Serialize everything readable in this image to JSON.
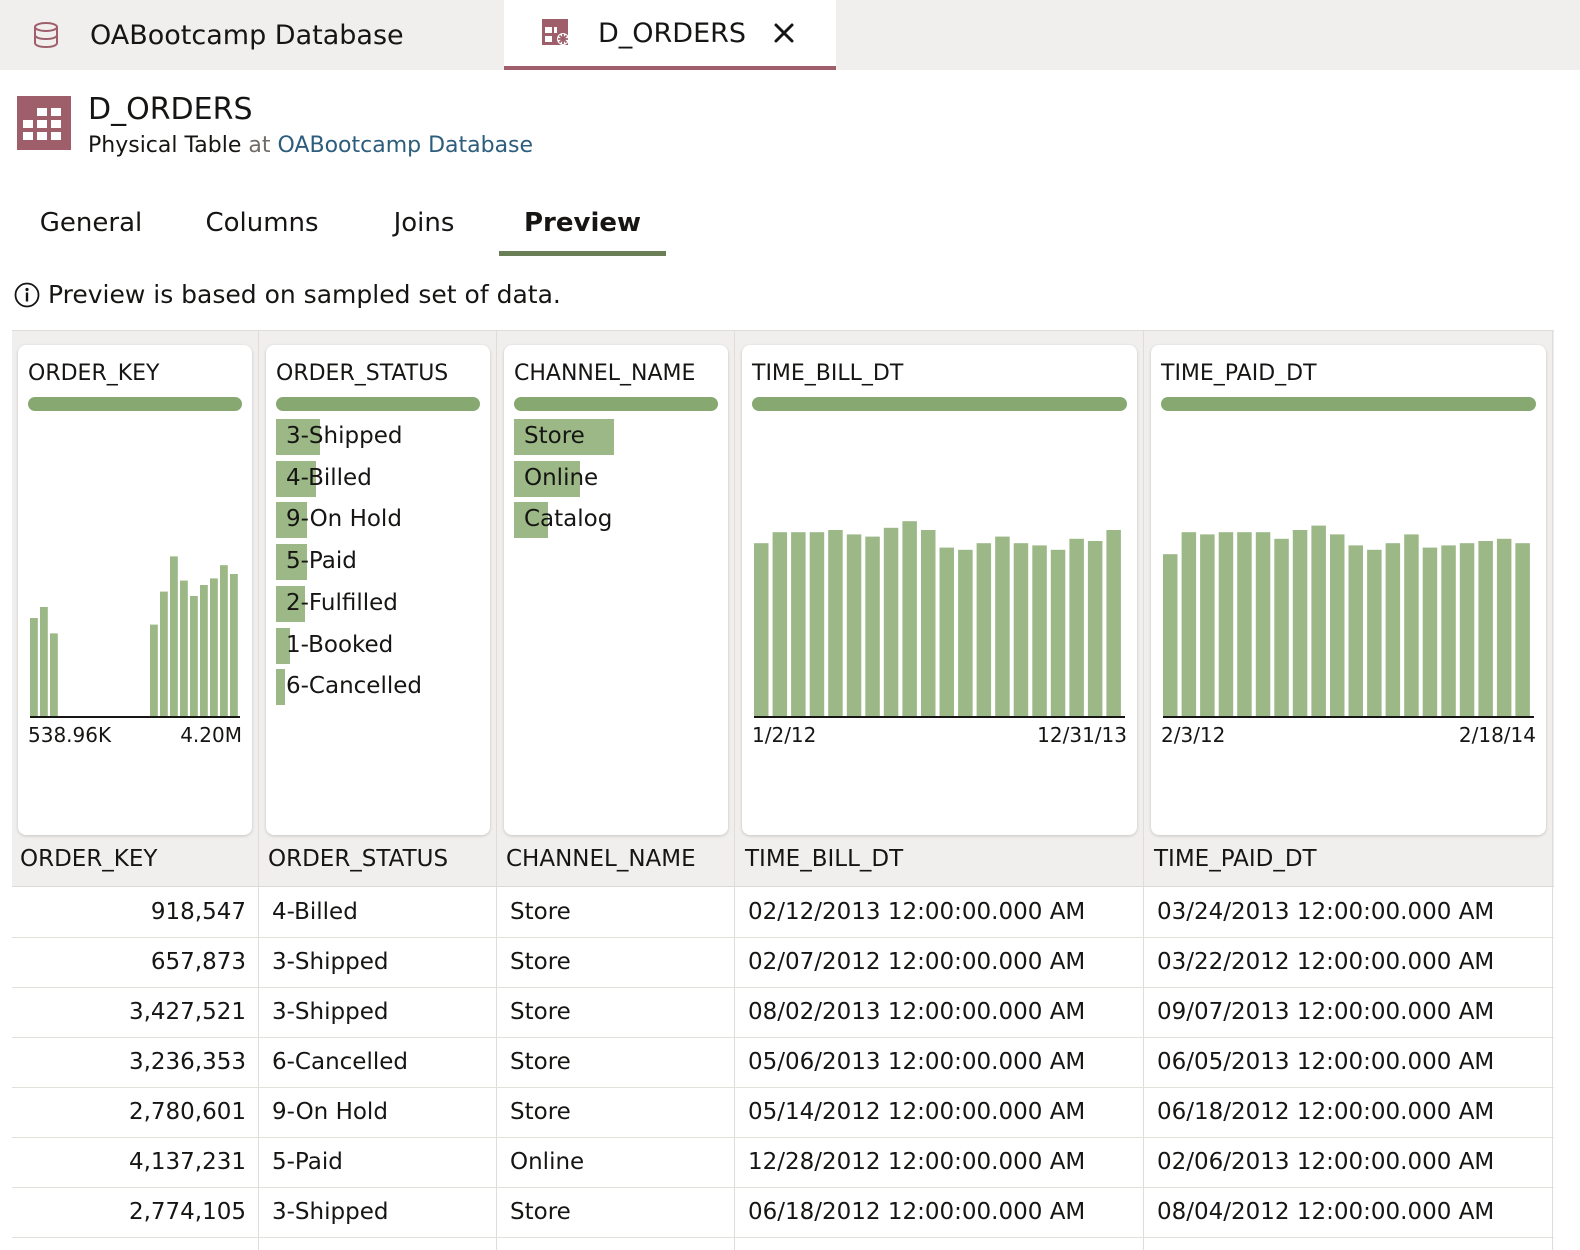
{
  "tabs": [
    {
      "label": "OABootcamp Database",
      "icon": "database-icon"
    },
    {
      "label": "D_ORDERS",
      "icon": "table-icon",
      "active": true
    }
  ],
  "header": {
    "title": "D_ORDERS",
    "type": "Physical Table",
    "at": "at",
    "parent": "OABootcamp Database"
  },
  "subtabs": [
    {
      "label": "General"
    },
    {
      "label": "Columns"
    },
    {
      "label": "Joins"
    },
    {
      "label": "Preview",
      "active": true
    }
  ],
  "notice": "Preview is based on sampled set of data.",
  "colors": {
    "accent": "#9e5f6b",
    "bar": "#9bb886",
    "barStrong": "#88a872",
    "link": "#2c5d7d"
  },
  "chart_data": [
    {
      "type": "bar",
      "title": "ORDER_KEY",
      "values": [
        0.45,
        0.5,
        0.38,
        0,
        0,
        0,
        0,
        0,
        0,
        0,
        0,
        0,
        0.42,
        0.57,
        0.73,
        0.62,
        0.55,
        0.6,
        0.63,
        0.69,
        0.65
      ],
      "range": [
        "538.96K",
        "4.20M"
      ]
    },
    {
      "type": "bar",
      "title": "ORDER_STATUS",
      "categories": [
        "3-Shipped",
        "4-Billed",
        "9-On Hold",
        "5-Paid",
        "2-Fulfilled",
        "1-Booked",
        "6-Cancelled"
      ],
      "values": [
        0.22,
        0.2,
        0.155,
        0.155,
        0.145,
        0.07,
        0.045
      ]
    },
    {
      "type": "bar",
      "title": "CHANNEL_NAME",
      "categories": [
        "Store",
        "Online",
        "Catalog"
      ],
      "values": [
        0.5,
        0.33,
        0.17
      ]
    },
    {
      "type": "bar",
      "title": "TIME_BILL_DT",
      "values": [
        0.79,
        0.84,
        0.84,
        0.84,
        0.85,
        0.83,
        0.82,
        0.86,
        0.89,
        0.85,
        0.77,
        0.76,
        0.79,
        0.82,
        0.79,
        0.78,
        0.76,
        0.81,
        0.8,
        0.85
      ],
      "range": [
        "1/2/12",
        "12/31/13"
      ]
    },
    {
      "type": "bar",
      "title": "TIME_PAID_DT",
      "values": [
        0.74,
        0.84,
        0.83,
        0.84,
        0.84,
        0.84,
        0.81,
        0.85,
        0.87,
        0.83,
        0.78,
        0.76,
        0.79,
        0.83,
        0.77,
        0.78,
        0.79,
        0.8,
        0.81,
        0.79
      ],
      "range": [
        "2/3/12",
        "2/18/14"
      ]
    }
  ],
  "columns": [
    "ORDER_KEY",
    "ORDER_STATUS",
    "CHANNEL_NAME",
    "TIME_BILL_DT",
    "TIME_PAID_DT"
  ],
  "rows": [
    [
      "918,547",
      "4-Billed",
      "Store",
      "02/12/2013 12:00:00.000 AM",
      "03/24/2013 12:00:00.000 AM"
    ],
    [
      "657,873",
      "3-Shipped",
      "Store",
      "02/07/2012 12:00:00.000 AM",
      "03/22/2012 12:00:00.000 AM"
    ],
    [
      "3,427,521",
      "3-Shipped",
      "Store",
      "08/02/2013 12:00:00.000 AM",
      "09/07/2013 12:00:00.000 AM"
    ],
    [
      "3,236,353",
      "6-Cancelled",
      "Store",
      "05/06/2013 12:00:00.000 AM",
      "06/05/2013 12:00:00.000 AM"
    ],
    [
      "2,780,601",
      "9-On Hold",
      "Store",
      "05/14/2012 12:00:00.000 AM",
      "06/18/2012 12:00:00.000 AM"
    ],
    [
      "4,137,231",
      "5-Paid",
      "Online",
      "12/28/2012 12:00:00.000 AM",
      "02/06/2013 12:00:00.000 AM"
    ],
    [
      "2,774,105",
      "3-Shipped",
      "Store",
      "06/18/2012 12:00:00.000 AM",
      "08/04/2012 12:00:00.000 AM"
    ]
  ]
}
